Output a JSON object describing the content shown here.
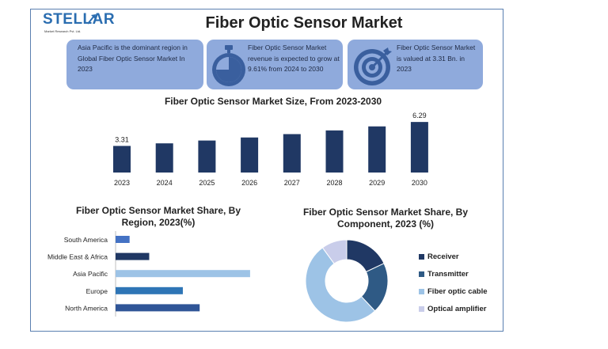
{
  "header": {
    "title": "Fiber Optic Sensor Market",
    "logo_name": "STELLAR",
    "logo_sub": "Market Research Pvt. Ltd."
  },
  "cards": [
    {
      "text": "Asia Pacific is the dominant region in Global Fiber Optic Sensor Market In 2023",
      "icon": "none"
    },
    {
      "text": "Fiber Optic Sensor Market revenue is expected to grow at 9.61% from 2024 to 2030",
      "icon": "stopwatch-icon"
    },
    {
      "text": "Fiber Optic Sensor Market is valued at 3.31 Bn. in 2023",
      "icon": "target-icon"
    }
  ],
  "colors": {
    "card": "#8faadc",
    "icon": "#3a5f9e",
    "bar_dark": "#203864",
    "frame": "#5a7fb0"
  },
  "chart_data": [
    {
      "type": "bar",
      "title": "Fiber Optic Sensor Market Size, From 2023-2030",
      "categories": [
        "2023",
        "2024",
        "2025",
        "2026",
        "2027",
        "2028",
        "2029",
        "2030"
      ],
      "values": [
        3.31,
        3.63,
        3.98,
        4.36,
        4.78,
        5.24,
        5.74,
        6.29
      ],
      "data_labels": {
        "2023": "3.31",
        "2030": "6.29"
      },
      "ylim": [
        0,
        6.5
      ],
      "grid": false
    },
    {
      "type": "bar",
      "orientation": "horizontal",
      "title": "Fiber Optic Sensor Market Share, By Region, 2023(%)",
      "categories": [
        "South America",
        "Middle East & Africa",
        "Asia Pacific",
        "Europe",
        "North America"
      ],
      "values": [
        5,
        12,
        48,
        24,
        30
      ],
      "colors": [
        "#4472c4",
        "#203864",
        "#9dc3e6",
        "#2e75b6",
        "#2f5597"
      ],
      "xlim": [
        0,
        50
      ],
      "grid": false
    },
    {
      "type": "pie",
      "donut": true,
      "title": "Fiber Optic Sensor Market Share, By Component, 2023 (%)",
      "labels": [
        "Receiver",
        "Transmitter",
        "Fiber optic cable",
        "Optical amplifier"
      ],
      "values": [
        18,
        20,
        52,
        10
      ],
      "colors": [
        "#203864",
        "#2f5a85",
        "#9dc3e6",
        "#c9cdea"
      ],
      "legend": "right"
    }
  ]
}
